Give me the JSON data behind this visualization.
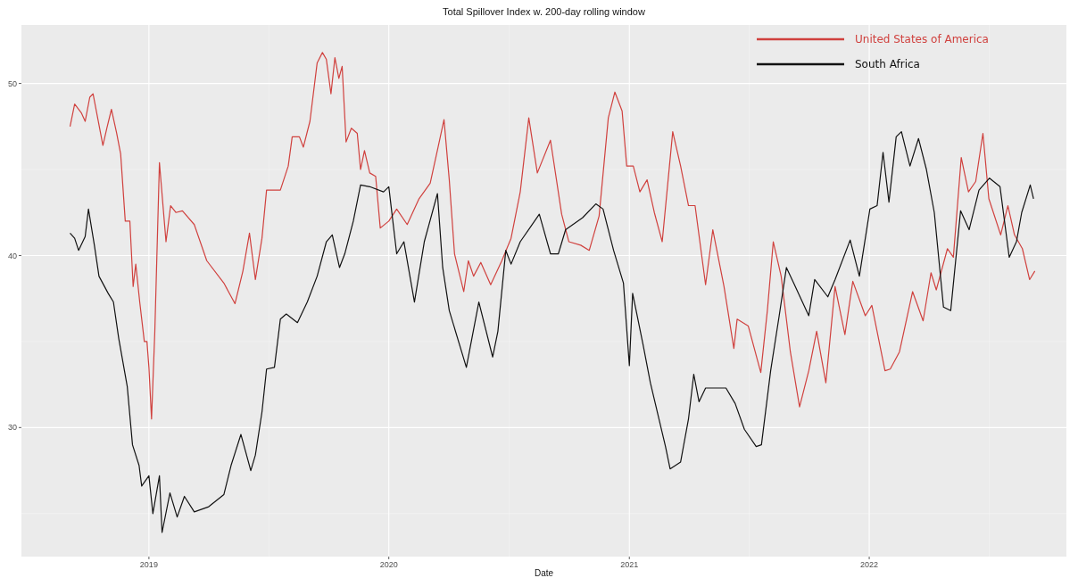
{
  "chart_data": {
    "type": "line",
    "title": "Total Spillover Index w. 200-day rolling window",
    "xlabel": "Date",
    "xlim": [
      "2018-06-21",
      "2022-10-28"
    ],
    "xticks": [
      {
        "value": "2019-01-01",
        "label": "2019"
      },
      {
        "value": "2020-01-01",
        "label": "2020"
      },
      {
        "value": "2021-01-01",
        "label": "2021"
      },
      {
        "value": "2022-01-01",
        "label": "2022"
      }
    ],
    "ylim": [
      22.5,
      53.4
    ],
    "yticks": [
      30,
      40,
      50
    ],
    "grid": true,
    "legend": "top right",
    "series": [
      {
        "name": "United States of America",
        "color": "#d0413e",
        "x": [
          "2018-09-03",
          "2018-09-10",
          "2018-09-20",
          "2018-09-26",
          "2018-10-03",
          "2018-10-08",
          "2018-10-23",
          "2018-10-29",
          "2018-11-05",
          "2018-11-13",
          "2018-11-19",
          "2018-11-26",
          "2018-12-03",
          "2018-12-08",
          "2018-12-12",
          "2018-12-18",
          "2018-12-25",
          "2018-12-29",
          "2019-01-01",
          "2019-01-05",
          "2019-01-10",
          "2019-01-12",
          "2019-01-17",
          "2019-01-27",
          "2019-02-03",
          "2019-02-11",
          "2019-02-21",
          "2019-03-11",
          "2019-03-30",
          "2019-04-25",
          "2019-05-12",
          "2019-05-24",
          "2019-06-03",
          "2019-06-12",
          "2019-06-22",
          "2019-06-29",
          "2019-07-20",
          "2019-08-01",
          "2019-08-07",
          "2019-08-18",
          "2019-08-24",
          "2019-09-03",
          "2019-09-14",
          "2019-09-22",
          "2019-09-28",
          "2019-10-05",
          "2019-10-11",
          "2019-10-17",
          "2019-10-22",
          "2019-10-28",
          "2019-11-05",
          "2019-11-14",
          "2019-11-19",
          "2019-11-25",
          "2019-12-03",
          "2019-12-12",
          "2019-12-19",
          "2020-01-01",
          "2020-01-13",
          "2020-01-29",
          "2020-02-16",
          "2020-03-04",
          "2020-03-16",
          "2020-03-25",
          "2020-04-02",
          "2020-04-10",
          "2020-04-24",
          "2020-05-01",
          "2020-05-09",
          "2020-05-20",
          "2020-06-04",
          "2020-06-21",
          "2020-07-05",
          "2020-07-19",
          "2020-08-01",
          "2020-08-14",
          "2020-09-03",
          "2020-09-20",
          "2020-10-01",
          "2020-10-19",
          "2020-11-01",
          "2020-11-16",
          "2020-11-30",
          "2020-12-10",
          "2020-12-21",
          "2020-12-28",
          "2021-01-07",
          "2021-01-17",
          "2021-01-28",
          "2021-02-08",
          "2021-02-20",
          "2021-03-08",
          "2021-03-20",
          "2021-04-01",
          "2021-04-11",
          "2021-04-27",
          "2021-05-08",
          "2021-05-25",
          "2021-06-09",
          "2021-06-14",
          "2021-07-01",
          "2021-07-20",
          "2021-07-30",
          "2021-08-08",
          "2021-08-20",
          "2021-09-03",
          "2021-09-17",
          "2021-10-01",
          "2021-10-13",
          "2021-10-27",
          "2021-11-10",
          "2021-11-25",
          "2021-12-07",
          "2021-12-26",
          "2022-01-05",
          "2022-01-25",
          "2022-02-02",
          "2022-02-16",
          "2022-03-08",
          "2022-03-24",
          "2022-04-05",
          "2022-04-13",
          "2022-04-30",
          "2022-05-09",
          "2022-05-21",
          "2022-06-01",
          "2022-06-12",
          "2022-06-23",
          "2022-07-02",
          "2022-07-20",
          "2022-07-31",
          "2022-08-10",
          "2022-08-22",
          "2022-09-02",
          "2022-09-10"
        ],
        "values": [
          47.5,
          48.8,
          48.3,
          47.8,
          49.2,
          49.4,
          46.4,
          47.4,
          48.5,
          47.1,
          45.9,
          42.0,
          42.0,
          38.2,
          39.5,
          37.3,
          35.0,
          35.0,
          33.5,
          30.5,
          35.6,
          38.4,
          45.4,
          40.8,
          42.9,
          42.5,
          42.6,
          41.8,
          39.7,
          38.4,
          37.2,
          39.1,
          41.3,
          38.6,
          41.0,
          43.8,
          43.8,
          45.2,
          46.9,
          46.9,
          46.3,
          47.8,
          51.2,
          51.8,
          51.4,
          49.4,
          51.5,
          50.3,
          51.0,
          46.6,
          47.4,
          47.1,
          45.0,
          46.1,
          44.8,
          44.6,
          41.6,
          42.0,
          42.7,
          41.8,
          43.3,
          44.2,
          46.3,
          47.9,
          44.4,
          40.1,
          37.9,
          39.7,
          38.8,
          39.6,
          38.3,
          39.7,
          41.0,
          43.7,
          48.0,
          44.8,
          46.7,
          42.4,
          40.8,
          40.6,
          40.3,
          42.3,
          48.0,
          49.5,
          48.4,
          45.2,
          45.2,
          43.7,
          44.4,
          42.5,
          40.8,
          47.2,
          45.2,
          42.9,
          42.9,
          38.3,
          41.5,
          38.2,
          34.6,
          36.3,
          35.9,
          33.2,
          36.8,
          40.8,
          38.8,
          34.4,
          31.2,
          33.3,
          35.6,
          32.6,
          38.2,
          35.4,
          38.5,
          36.5,
          37.1,
          33.3,
          33.4,
          34.4,
          37.9,
          36.2,
          39.0,
          38.0,
          40.4,
          39.9,
          45.7,
          43.7,
          44.3,
          47.1,
          43.3,
          41.2,
          42.9,
          41.2,
          40.4,
          38.6,
          39.1
        ]
      },
      {
        "name": "South Africa",
        "color": "#111111",
        "x": [
          "2018-09-03",
          "2018-09-10",
          "2018-09-16",
          "2018-09-26",
          "2018-10-01",
          "2018-10-10",
          "2018-10-17",
          "2018-10-31",
          "2018-11-08",
          "2018-11-16",
          "2018-11-29",
          "2018-12-07",
          "2018-12-17",
          "2018-12-21",
          "2019-01-01",
          "2019-01-07",
          "2019-01-17",
          "2019-01-21",
          "2019-02-02",
          "2019-02-13",
          "2019-02-24",
          "2019-03-11",
          "2019-04-02",
          "2019-04-25",
          "2019-05-06",
          "2019-05-21",
          "2019-06-05",
          "2019-06-12",
          "2019-06-22",
          "2019-06-29",
          "2019-07-11",
          "2019-07-20",
          "2019-07-29",
          "2019-08-15",
          "2019-08-30",
          "2019-09-14",
          "2019-09-28",
          "2019-10-07",
          "2019-10-18",
          "2019-10-26",
          "2019-11-08",
          "2019-11-19",
          "2019-12-03",
          "2019-12-24",
          "2020-01-01",
          "2020-01-13",
          "2020-01-24",
          "2020-02-09",
          "2020-02-24",
          "2020-03-15",
          "2020-03-23",
          "2020-04-02",
          "2020-04-28",
          "2020-05-17",
          "2020-06-07",
          "2020-06-15",
          "2020-06-27",
          "2020-07-05",
          "2020-07-19",
          "2020-08-17",
          "2020-09-03",
          "2020-09-15",
          "2020-09-26",
          "2020-10-22",
          "2020-11-11",
          "2020-11-22",
          "2020-12-08",
          "2020-12-23",
          "2021-01-01",
          "2021-01-06",
          "2021-01-22",
          "2021-02-02",
          "2021-02-25",
          "2021-03-04",
          "2021-03-20",
          "2021-04-01",
          "2021-04-09",
          "2021-04-17",
          "2021-04-27",
          "2021-05-28",
          "2021-06-11",
          "2021-06-25",
          "2021-07-13",
          "2021-07-21",
          "2021-08-04",
          "2021-08-17",
          "2021-08-28",
          "2021-09-08",
          "2021-10-01",
          "2021-10-10",
          "2021-10-30",
          "2021-11-10",
          "2021-12-03",
          "2021-12-17",
          "2022-01-02",
          "2022-01-13",
          "2022-01-22",
          "2022-01-31",
          "2022-02-11",
          "2022-02-19",
          "2022-03-04",
          "2022-03-17",
          "2022-03-29",
          "2022-04-10",
          "2022-04-24",
          "2022-05-05",
          "2022-05-20",
          "2022-06-02",
          "2022-06-17",
          "2022-07-03",
          "2022-07-19",
          "2022-08-02",
          "2022-08-13",
          "2022-08-21",
          "2022-09-03",
          "2022-09-08"
        ],
        "values": [
          41.3,
          41.0,
          40.3,
          41.1,
          42.7,
          40.6,
          38.8,
          37.8,
          37.3,
          35.2,
          32.4,
          29.0,
          27.8,
          26.6,
          27.2,
          25.0,
          27.2,
          23.9,
          26.2,
          24.8,
          26.0,
          25.1,
          25.4,
          26.1,
          27.8,
          29.6,
          27.5,
          28.4,
          30.9,
          33.4,
          33.5,
          36.3,
          36.6,
          36.1,
          37.3,
          38.8,
          40.8,
          41.2,
          39.3,
          40.1,
          42.0,
          44.1,
          44.0,
          43.7,
          44.0,
          40.1,
          40.8,
          37.3,
          40.8,
          43.6,
          39.3,
          36.8,
          33.5,
          37.3,
          34.1,
          35.6,
          40.3,
          39.5,
          40.8,
          42.4,
          40.1,
          40.1,
          41.5,
          42.2,
          43.0,
          42.7,
          40.3,
          38.4,
          33.6,
          37.8,
          34.8,
          32.6,
          28.9,
          27.6,
          28.0,
          30.5,
          33.1,
          31.5,
          32.3,
          32.3,
          31.4,
          29.9,
          28.9,
          29.0,
          33.3,
          36.5,
          39.3,
          38.4,
          36.5,
          38.6,
          37.6,
          38.6,
          40.9,
          38.8,
          42.7,
          42.9,
          46.0,
          43.1,
          46.9,
          47.2,
          45.2,
          46.8,
          45.0,
          42.5,
          37.0,
          36.8,
          42.6,
          41.5,
          43.8,
          44.5,
          44.0,
          39.9,
          40.8,
          42.5,
          44.1,
          43.3
        ]
      }
    ]
  }
}
